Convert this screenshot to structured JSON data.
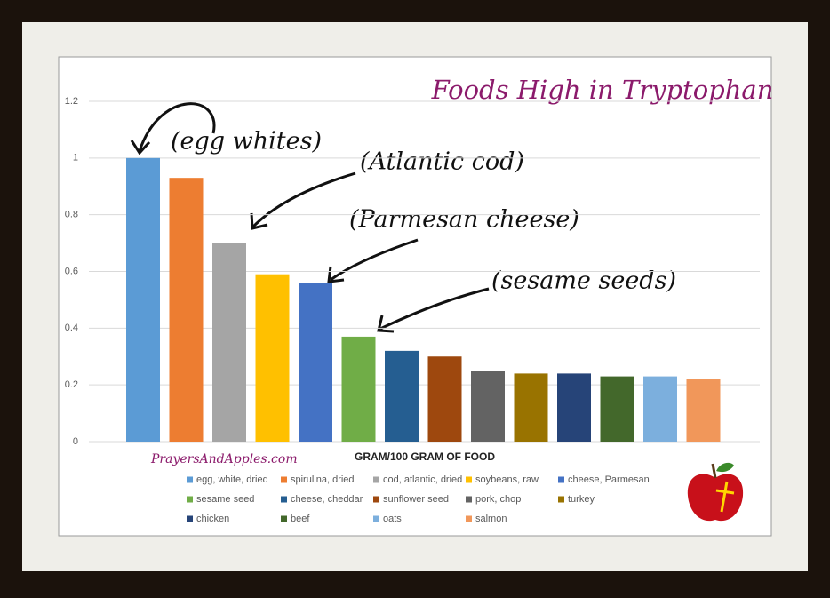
{
  "chart_data": {
    "type": "bar",
    "title": "Foods High in Tryptophan",
    "x_label": "GRAM/100 GRAM OF FOOD",
    "categories": [
      "egg, white, dried",
      "spirulina, dried",
      "cod, atlantic, dried",
      "soybeans, raw",
      "cheese, Parmesan",
      "sesame seed",
      "cheese, cheddar",
      "sunflower seed",
      "pork, chop",
      "turkey",
      "chicken",
      "beef",
      "oats",
      "salmon"
    ],
    "values": [
      1.0,
      0.93,
      0.7,
      0.59,
      0.56,
      0.37,
      0.32,
      0.3,
      0.25,
      0.24,
      0.24,
      0.23,
      0.23,
      0.22
    ],
    "colors": [
      "#5b9bd5",
      "#ed7d31",
      "#a5a5a5",
      "#ffc000",
      "#4472c4",
      "#70ad47",
      "#255e91",
      "#9e480e",
      "#636363",
      "#997300",
      "#264478",
      "#43682b",
      "#7cafdd",
      "#f1975a"
    ],
    "ylim": [
      0,
      1.2
    ],
    "yticks": [
      0,
      0.2,
      0.4,
      0.6,
      0.8,
      1,
      1.2
    ],
    "grid": true,
    "annotations": [
      "(egg whites)",
      "(Atlantic cod)",
      "(Parmesan cheese)",
      "(sesame seeds)"
    ],
    "watermark": "PrayersAndApples.com"
  }
}
